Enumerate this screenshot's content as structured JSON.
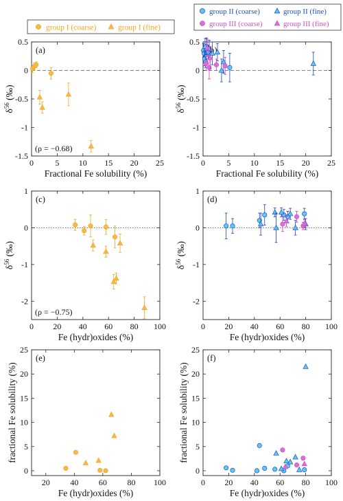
{
  "legends": {
    "left": {
      "entries": [
        {
          "label": "group I (coarse)",
          "marker": "circle",
          "color": "#f5a623"
        },
        {
          "label": "group I (fine)",
          "marker": "triangle",
          "color": "#f5a623"
        }
      ]
    },
    "right": {
      "entries": [
        {
          "label": "group II (coarse)",
          "marker": "circle",
          "color": "#1a6fe0"
        },
        {
          "label": "group II (fine)",
          "marker": "triangle",
          "color": "#1a6fe0"
        },
        {
          "label": "group III (coarse)",
          "marker": "circle",
          "color": "#d050c8"
        },
        {
          "label": "group III (fine)",
          "marker": "triangle",
          "color": "#d050c8"
        }
      ]
    }
  },
  "colors": {
    "group_I_fill": "#f5b84a",
    "group_I_text": "#f5a623",
    "group_II_fill": "#5ec8f0",
    "group_II_text": "#1a4fc8",
    "group_III_fill": "#d86fd6",
    "group_III_text": "#d050c8",
    "group_II_error": "#1a3fbf",
    "group_III_error": "#c040c0"
  },
  "chart_data": [
    {
      "id": "a",
      "panel_label": "(a)",
      "type": "scatter",
      "xlabel": "Fractional Fe solubility (%)",
      "ylabel": "δ56Fe (‰)",
      "xlim": [
        0,
        25
      ],
      "ylim": [
        -1.5,
        0.5
      ],
      "xticks": [
        0,
        5,
        10,
        15,
        20,
        25
      ],
      "yticks": [
        -1.5,
        -1,
        -0.5,
        0,
        0.5
      ],
      "ytick_labels": [
        "-1.5",
        "-1",
        "-0.5",
        "0",
        "0.5"
      ],
      "reference_line": 0,
      "reference_style": "dashed",
      "annotation": "(ρ = −0.68)",
      "series": [
        {
          "group": "I",
          "size": "coarse",
          "marker": "circle",
          "points": [
            [
              0.2,
              0.03,
              0.07
            ],
            [
              0.5,
              0.07,
              0.06
            ],
            [
              0.9,
              0.1,
              0.05
            ],
            [
              3.8,
              -0.05,
              0.1
            ]
          ]
        },
        {
          "group": "I",
          "size": "fine",
          "marker": "triangle",
          "points": [
            [
              1.6,
              -0.47,
              0.12
            ],
            [
              2.1,
              -0.65,
              0.1
            ],
            [
              7.2,
              -0.42,
              0.2
            ],
            [
              11.6,
              -1.33,
              0.1
            ]
          ]
        }
      ]
    },
    {
      "id": "b",
      "panel_label": "(b)",
      "type": "scatter",
      "xlabel": "Fractional Fe solubility (%)",
      "ylabel": "δ56Fe (‰)",
      "xlim": [
        0,
        25
      ],
      "ylim": [
        -1.5,
        0.5
      ],
      "xticks": [
        0,
        5,
        10,
        15,
        20,
        25
      ],
      "yticks": [
        -1.5,
        -1,
        -0.5,
        0,
        0.5
      ],
      "ytick_labels": [
        "-1.5",
        "-1",
        "-0.5",
        "0",
        "0.5"
      ],
      "reference_line": 0,
      "reference_style": "dashed",
      "annotation": "",
      "series": [
        {
          "group": "II",
          "size": "coarse",
          "marker": "circle",
          "points": [
            [
              0.1,
              0.35,
              0.12
            ],
            [
              0.2,
              0.3,
              0.1
            ],
            [
              0.3,
              0.2,
              0.12
            ],
            [
              0.5,
              0.15,
              0.1
            ],
            [
              0.7,
              0.42,
              0.15
            ],
            [
              1.0,
              0.32,
              0.12
            ],
            [
              5.2,
              0.05,
              0.25
            ]
          ]
        },
        {
          "group": "II",
          "size": "fine",
          "marker": "triangle",
          "points": [
            [
              0.4,
              0.42,
              0.14
            ],
            [
              1.2,
              0.38,
              0.15
            ],
            [
              1.8,
              0.3,
              0.2
            ],
            [
              2.8,
              0.32,
              0.15
            ],
            [
              3.6,
              0.0,
              0.2
            ],
            [
              4.0,
              0.15,
              0.2
            ],
            [
              21.5,
              0.12,
              0.2
            ]
          ]
        },
        {
          "group": "III",
          "size": "coarse",
          "marker": "circle",
          "points": [
            [
              0.6,
              0.12,
              0.12
            ],
            [
              1.2,
              0.05,
              0.2
            ],
            [
              2.6,
              0.1,
              0.1
            ],
            [
              4.3,
              0.08,
              0.15
            ]
          ]
        },
        {
          "group": "III",
          "size": "fine",
          "marker": "triangle",
          "points": [
            [
              0.8,
              0.4,
              0.15
            ],
            [
              1.4,
              0.22,
              0.2
            ]
          ]
        }
      ]
    },
    {
      "id": "c",
      "panel_label": "(c)",
      "type": "scatter",
      "xlabel": "Fe (hydr)oxides (%)",
      "ylabel": "δ56Fe (‰)",
      "xlim": [
        0,
        100
      ],
      "ylim": [
        -2.5,
        1
      ],
      "xticks": [
        0,
        20,
        40,
        60,
        80,
        100
      ],
      "yticks": [
        -2,
        -1,
        0,
        1
      ],
      "ytick_labels": [
        "-2",
        "-1",
        "0",
        "1"
      ],
      "reference_line": 0,
      "reference_style": "dotted",
      "annotation": "(ρ = −0.75)",
      "series": [
        {
          "group": "I",
          "size": "coarse",
          "marker": "circle",
          "points": [
            [
              34,
              0.08,
              0.15
            ],
            [
              41,
              -0.08,
              0.12
            ],
            [
              46,
              0.05,
              0.3
            ],
            [
              58,
              0.02,
              0.2
            ],
            [
              65,
              -0.25,
              0.3
            ]
          ]
        },
        {
          "group": "I",
          "size": "fine",
          "marker": "triangle",
          "points": [
            [
              48,
              -0.48,
              0.15
            ],
            [
              58,
              -0.65,
              0.15
            ],
            [
              64,
              -1.47,
              0.2
            ],
            [
              66,
              -1.38,
              0.15
            ],
            [
              69,
              -0.42,
              0.25
            ],
            [
              88,
              -2.18,
              0.3
            ]
          ]
        }
      ]
    },
    {
      "id": "d",
      "panel_label": "(d)",
      "type": "scatter",
      "xlabel": "Fe (hydr)oxides (%)",
      "ylabel": "δ56Fe (‰)",
      "xlim": [
        0,
        100
      ],
      "ylim": [
        -2.5,
        1
      ],
      "xticks": [
        0,
        20,
        40,
        60,
        80,
        100
      ],
      "yticks": [
        -2,
        -1,
        0,
        1
      ],
      "ytick_labels": [
        "-2",
        "-1",
        "0",
        "1"
      ],
      "reference_line": 0,
      "reference_style": "dotted",
      "annotation": "",
      "series": [
        {
          "group": "II",
          "size": "coarse",
          "marker": "circle",
          "points": [
            [
              18,
              0.05,
              0.35
            ],
            [
              23,
              0.05,
              0.2
            ],
            [
              44,
              0.2,
              0.2
            ],
            [
              48,
              0.35,
              0.28
            ],
            [
              63,
              0.35,
              0.15
            ],
            [
              66,
              0.3,
              0.15
            ],
            [
              79,
              0.38,
              0.15
            ]
          ]
        },
        {
          "group": "II",
          "size": "fine",
          "marker": "triangle",
          "points": [
            [
              45,
              0.1,
              0.3
            ],
            [
              56,
              0.42,
              0.12
            ],
            [
              57,
              0.0,
              0.4
            ],
            [
              61,
              0.42,
              0.12
            ],
            [
              68,
              0.38,
              0.15
            ],
            [
              72,
              0.0,
              0.2
            ],
            [
              80,
              0.1,
              0.15
            ]
          ]
        },
        {
          "group": "III",
          "size": "coarse",
          "marker": "circle",
          "points": [
            [
              62,
              0.1,
              0.2
            ],
            [
              73,
              0.3,
              0.15
            ],
            [
              78,
              0.05,
              0.1
            ]
          ]
        },
        {
          "group": "III",
          "size": "fine",
          "marker": "triangle",
          "points": [
            [
              65,
              0.18,
              0.15
            ],
            [
              79,
              0.12,
              0.12
            ]
          ]
        }
      ]
    },
    {
      "id": "e",
      "panel_label": "(e)",
      "type": "scatter",
      "xlabel": "Fe (hydr)oxides (%)",
      "ylabel": "fractional Fe solubility (%)",
      "xlim": [
        10,
        100
      ],
      "ylim": [
        -1,
        25
      ],
      "xticks": [
        20,
        40,
        60,
        80,
        100
      ],
      "yticks": [
        0,
        5,
        10,
        15,
        20,
        25
      ],
      "ytick_labels": [
        "0",
        "5",
        "10",
        "15",
        "20",
        "25"
      ],
      "reference_line": null,
      "annotation": "",
      "series": [
        {
          "group": "I",
          "size": "coarse",
          "marker": "circle",
          "points": [
            [
              34,
              0.5,
              0
            ],
            [
              41,
              3.8,
              0
            ],
            [
              58,
              0.1,
              0
            ],
            [
              62,
              0.0,
              0
            ]
          ]
        },
        {
          "group": "I",
          "size": "fine",
          "marker": "triangle",
          "points": [
            [
              48,
              1.6,
              0
            ],
            [
              57,
              2.1,
              0
            ],
            [
              66,
              11.6,
              0
            ],
            [
              68,
              7.2,
              0
            ]
          ]
        }
      ]
    },
    {
      "id": "f",
      "panel_label": "(f)",
      "type": "scatter",
      "xlabel": "Fe (hydr)oxides (%)",
      "ylabel": "fractional Fe solubility (%)",
      "xlim": [
        0,
        100
      ],
      "ylim": [
        -1,
        25
      ],
      "xticks": [
        0,
        20,
        40,
        60,
        80,
        100
      ],
      "yticks": [
        0,
        5,
        10,
        15,
        20,
        25
      ],
      "ytick_labels": [
        "0",
        "5",
        "10",
        "15",
        "20",
        "25"
      ],
      "reference_line": null,
      "annotation": "",
      "series": [
        {
          "group": "II",
          "size": "coarse",
          "marker": "circle",
          "points": [
            [
              18,
              0.6,
              0
            ],
            [
              23,
              0.1,
              0
            ],
            [
              42,
              0.0,
              0
            ],
            [
              44,
              5.2,
              0
            ],
            [
              48,
              0.5,
              0
            ],
            [
              56,
              0.3,
              0
            ],
            [
              63,
              0.0,
              0
            ],
            [
              66,
              1.0,
              0
            ],
            [
              79,
              0.2,
              0
            ]
          ]
        },
        {
          "group": "II",
          "size": "fine",
          "marker": "triangle",
          "points": [
            [
              57,
              3.6,
              0
            ],
            [
              61,
              0.4,
              0
            ],
            [
              65,
              2.0,
              0
            ],
            [
              68,
              1.8,
              0
            ],
            [
              72,
              2.8,
              0
            ],
            [
              75,
              0.2,
              0
            ],
            [
              80,
              21.5,
              0
            ]
          ]
        },
        {
          "group": "III",
          "size": "coarse",
          "marker": "circle",
          "points": [
            [
              62,
              4.3,
              0
            ],
            [
              73,
              1.2,
              0
            ],
            [
              78,
              2.6,
              0
            ]
          ]
        },
        {
          "group": "III",
          "size": "fine",
          "marker": "triangle",
          "points": [
            [
              64,
              0.8,
              0
            ],
            [
              79,
              1.4,
              0
            ]
          ]
        }
      ]
    }
  ]
}
